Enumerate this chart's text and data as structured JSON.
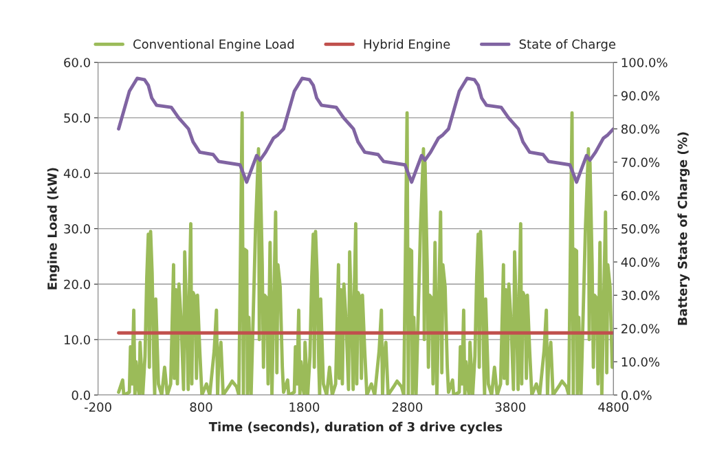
{
  "chart_data": {
    "type": "line",
    "xlabel": "Time (seconds), duration of 3 drive cycles",
    "ylabel": "Engine Load (kW)",
    "y2label": "Battery State of Charge (%)",
    "xlim": [
      -200,
      4800
    ],
    "xticks": [
      -200,
      800,
      1800,
      2800,
      3800,
      4800
    ],
    "ylim": [
      0,
      60
    ],
    "yticks": [
      {
        "value": 0,
        "label": "0.0"
      },
      {
        "value": 10,
        "label": "10.0"
      },
      {
        "value": 20,
        "label": "20.0"
      },
      {
        "value": 30,
        "label": "30.0"
      },
      {
        "value": 40,
        "label": "40.0"
      },
      {
        "value": 50,
        "label": "50.0"
      },
      {
        "value": 60,
        "label": "60.0"
      }
    ],
    "y2lim": [
      0,
      100
    ],
    "y2ticks": [
      {
        "value": 0,
        "label": "0.0%"
      },
      {
        "value": 10,
        "label": "10.0%"
      },
      {
        "value": 20,
        "label": "20.0%"
      },
      {
        "value": 30,
        "label": "30.0%"
      },
      {
        "value": 40,
        "label": "40.0%"
      },
      {
        "value": 50,
        "label": "50.0%"
      },
      {
        "value": 60,
        "label": "60.0%"
      },
      {
        "value": 70,
        "label": "70.0%"
      },
      {
        "value": 80,
        "label": "80.0%"
      },
      {
        "value": 90,
        "label": "90.0%"
      },
      {
        "value": 100,
        "label": "100.0%"
      }
    ],
    "grid": "y",
    "legend": "top",
    "marker": "none",
    "line_style": "solid",
    "series": [
      {
        "name": "Conventional Engine Load",
        "color": "#9bbb59",
        "x": [
          0,
          39,
          50,
          104,
          115,
          130,
          147,
          158,
          169,
          191,
          200,
          208,
          234,
          256,
          273,
          288,
          298,
          310,
          325,
          342,
          350,
          360,
          386,
          418,
          446,
          472,
          505,
          533,
          540,
          555,
          570,
          585,
          607,
          630,
          641,
          663,
          675,
          685,
          700,
          710,
          722,
          743,
          755,
          765,
          787,
          808,
          852,
          884,
          927,
          949,
          960,
          971,
          992,
          1014,
          1068,
          1101,
          1144,
          1166,
          1198,
          1210,
          1220,
          1242,
          1250,
          1263,
          1285,
          1328,
          1357,
          1365,
          1372,
          1393,
          1405,
          1415,
          1437,
          1450,
          1469,
          1487,
          1523,
          1535,
          1545,
          1567,
          1588,
          1600,
          1639,
          1650,
          1704,
          1715,
          1730,
          1747,
          1758,
          1769,
          1791,
          1800,
          1808,
          1834,
          1856,
          1873,
          1888,
          1898,
          1910,
          1925,
          1942,
          1950,
          1960,
          1986,
          2018,
          2046,
          2072,
          2105,
          2133,
          2140,
          2155,
          2170,
          2185,
          2207,
          2230,
          2241,
          2263,
          2275,
          2285,
          2300,
          2310,
          2322,
          2343,
          2355,
          2365,
          2387,
          2408,
          2452,
          2484,
          2527,
          2549,
          2560,
          2571,
          2592,
          2614,
          2668,
          2701,
          2744,
          2766,
          2798,
          2810,
          2820,
          2842,
          2850,
          2863,
          2885,
          2928,
          2957,
          2965,
          2972,
          2993,
          3005,
          3015,
          3037,
          3050,
          3069,
          3087,
          3123,
          3135,
          3145,
          3167,
          3188,
          3200,
          3239,
          3250,
          3304,
          3315,
          3330,
          3347,
          3358,
          3369,
          3391,
          3400,
          3408,
          3434,
          3456,
          3473,
          3488,
          3498,
          3510,
          3525,
          3542,
          3550,
          3560,
          3586,
          3618,
          3646,
          3672,
          3705,
          3733,
          3740,
          3755,
          3770,
          3785,
          3807,
          3830,
          3841,
          3863,
          3875,
          3885,
          3900,
          3910,
          3922,
          3943,
          3955,
          3965,
          3987,
          4008,
          4052,
          4084,
          4127,
          4149,
          4160,
          4171,
          4192,
          4214,
          4268,
          4301,
          4344,
          4366,
          4398,
          4410,
          4420,
          4442,
          4450,
          4463,
          4485,
          4528,
          4557,
          4565,
          4572,
          4593,
          4605,
          4615,
          4637,
          4650,
          4669,
          4687,
          4723,
          4735,
          4745,
          4767,
          4788
        ],
        "values": [
          0.5,
          2.7,
          0,
          0.5,
          8.7,
          2,
          15.3,
          0,
          6,
          1,
          0,
          9.5,
          0,
          7,
          21.2,
          29,
          5,
          29.5,
          22,
          5,
          0,
          17.3,
          2,
          0,
          5,
          0,
          2,
          23.5,
          3,
          19,
          2,
          20,
          13,
          1,
          25.8,
          11,
          1,
          17.5,
          30.9,
          2,
          18.5,
          17.5,
          3,
          18,
          8,
          0,
          2,
          0,
          8,
          15.3,
          0,
          6,
          9.5,
          0,
          1.5,
          2.5,
          1.5,
          0,
          50.9,
          0,
          26.3,
          26,
          0,
          14,
          0,
          30,
          44.4,
          10,
          42,
          23.5,
          5,
          18,
          17.5,
          2,
          27.5,
          0,
          33,
          4,
          23.5,
          19.5,
          5,
          0.5,
          2.7,
          0,
          0.5,
          8.7,
          2,
          15.3,
          0,
          6,
          1,
          0,
          9.5,
          0,
          7,
          21.2,
          29,
          5,
          29.5,
          22,
          5,
          0,
          17.3,
          2,
          0,
          5,
          0,
          2,
          23.5,
          3,
          19,
          2,
          20,
          13,
          1,
          25.8,
          11,
          1,
          17.5,
          30.9,
          2,
          18.5,
          17.5,
          3,
          18,
          8,
          0,
          2,
          0,
          8,
          15.3,
          0,
          6,
          9.5,
          0,
          1.5,
          2.5,
          1.5,
          0,
          50.9,
          0,
          26.3,
          26,
          0,
          14,
          0,
          30,
          44.4,
          10,
          42,
          23.5,
          5,
          18,
          17.5,
          2,
          27.5,
          0,
          33,
          4,
          23.5,
          19.5,
          5,
          0.5,
          2.7,
          0,
          0.5,
          8.7,
          2,
          15.3,
          0,
          6,
          1,
          0,
          9.5,
          0,
          7,
          21.2,
          29,
          5,
          29.5,
          22,
          5,
          0,
          17.3,
          2,
          0,
          5,
          0,
          2,
          23.5,
          3,
          19,
          2,
          20,
          13,
          1,
          25.8,
          11,
          1,
          17.5,
          30.9,
          2,
          18.5,
          17.5,
          3,
          18,
          8,
          0,
          2,
          0,
          8,
          15.3,
          0,
          6,
          9.5,
          0,
          1.5,
          2.5,
          1.5,
          0,
          50.9,
          0,
          26.3,
          26,
          0,
          14,
          0,
          30,
          44.4,
          10,
          42,
          23.5,
          5,
          18,
          17.5,
          2,
          27.5,
          0,
          33,
          4,
          23.5,
          19.5,
          5
        ]
      },
      {
        "name": "Hybrid Engine",
        "color": "#c0504d",
        "x": [
          0,
          4800
        ],
        "values": [
          11.2,
          11.2
        ]
      },
      {
        "name": "State of Charge",
        "color": "#8064a2",
        "axis": "y2",
        "x": [
          0,
          104,
          180,
          251,
          288,
          321,
          368,
          511,
          581,
          678,
          722,
          787,
          917,
          971,
          1177,
          1242,
          1339,
          1372,
          1426,
          1502,
          1545,
          1600,
          1704,
          1780,
          1851,
          1888,
          1921,
          1968,
          2111,
          2181,
          2278,
          2322,
          2387,
          2517,
          2571,
          2777,
          2842,
          2939,
          2972,
          3026,
          3102,
          3145,
          3200,
          3304,
          3380,
          3451,
          3488,
          3521,
          3568,
          3711,
          3781,
          3878,
          3922,
          3987,
          4117,
          4171,
          4377,
          4442,
          4539,
          4572,
          4626,
          4702,
          4745,
          4800
        ],
        "values": [
          80.0,
          91.3,
          95.2,
          94.8,
          93.1,
          89.3,
          87.1,
          86.5,
          83.4,
          80.0,
          76.1,
          73.0,
          72.3,
          70.2,
          69.2,
          64.0,
          72.0,
          70.6,
          73.0,
          77.2,
          78.2,
          80.0,
          91.3,
          95.2,
          94.8,
          93.1,
          89.3,
          87.1,
          86.5,
          83.4,
          80.0,
          76.1,
          73.0,
          72.3,
          70.2,
          69.2,
          64.0,
          72.0,
          70.6,
          73.0,
          77.2,
          78.2,
          80.0,
          91.3,
          95.2,
          94.8,
          93.1,
          89.3,
          87.1,
          86.5,
          83.4,
          80.0,
          76.1,
          73.0,
          72.3,
          70.2,
          69.2,
          64.0,
          72.0,
          70.6,
          73.0,
          77.2,
          78.2,
          80.0
        ]
      }
    ]
  }
}
